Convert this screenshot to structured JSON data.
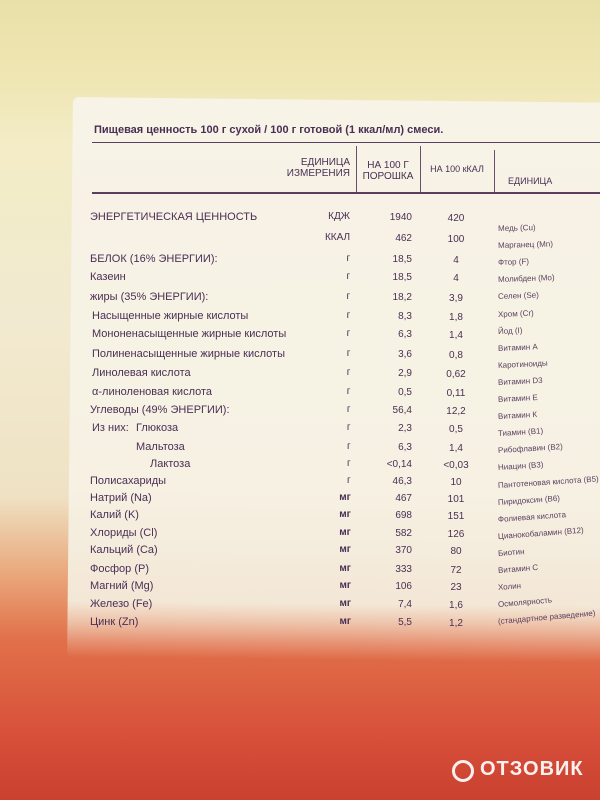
{
  "title": "Пищевая ценность 100 г сухой / 100 г готовой (1 ккал/мл) смеси.",
  "headers": {
    "unit": "ЕДИНИЦА ИЗМЕРЕНИЯ",
    "per_100g": "НА 100 Г ПОРОШКА",
    "per_100kcal": "НА 100 кКАЛ",
    "unit_right": "ЕДИНИЦА"
  },
  "rows": [
    {
      "name": "ЭНЕРГЕТИЧЕСКАЯ ЦЕННОСТЬ",
      "unit": "КДЖ",
      "per_100g": "1940",
      "per_100kcal": "420"
    },
    {
      "unit": "ККАЛ",
      "per_100g": "462",
      "per_100kcal": "100"
    },
    {
      "name": "БЕЛОК (16% ЭНЕРГИИ):",
      "unit": "г",
      "per_100g": "18,5",
      "per_100kcal": "4"
    },
    {
      "name": "Казеин",
      "unit": "г",
      "per_100g": "18,5",
      "per_100kcal": "4"
    },
    {
      "name": "жиры (35% ЭНЕРГИИ):",
      "unit": "г",
      "per_100g": "18,2",
      "per_100kcal": "3,9"
    },
    {
      "name": "Насыщенные жирные кислоты",
      "unit": "г",
      "per_100g": "8,3",
      "per_100kcal": "1,8"
    },
    {
      "name": "Мононенасыщенные жирные кислоты",
      "unit": "г",
      "per_100g": "6,3",
      "per_100kcal": "1,4"
    },
    {
      "name": "Полиненасыщенные жирные кислоты",
      "unit": "г",
      "per_100g": "3,6",
      "per_100kcal": "0,8"
    },
    {
      "name": "Линолевая кислота",
      "unit": "г",
      "per_100g": "2,9",
      "per_100kcal": "0,62"
    },
    {
      "name": "α-линоленовая кислота",
      "unit": "г",
      "per_100g": "0,5",
      "per_100kcal": "0,11"
    },
    {
      "name": "Углеводы (49% ЭНЕРГИИ):",
      "unit": "г",
      "per_100g": "56,4",
      "per_100kcal": "12,2"
    },
    {
      "prefix": "Из них:",
      "name": "Глюкоза",
      "unit": "г",
      "per_100g": "2,3",
      "per_100kcal": "0,5"
    },
    {
      "name": "Мальтоза",
      "unit": "г",
      "per_100g": "6,3",
      "per_100kcal": "1,4"
    },
    {
      "name": "Лактоза",
      "unit": "г",
      "per_100g": "<0,14",
      "per_100kcal": "<0,03"
    },
    {
      "name": "Полисахариды",
      "unit": "г",
      "per_100g": "46,3",
      "per_100kcal": "10"
    },
    {
      "name": "Натрий (Na)",
      "unit": "мг",
      "per_100g": "467",
      "per_100kcal": "101"
    },
    {
      "name": "Калий (K)",
      "unit": "мг",
      "per_100g": "698",
      "per_100kcal": "151"
    },
    {
      "name": "Хлориды (Cl)",
      "unit": "мг",
      "per_100g": "582",
      "per_100kcal": "126"
    },
    {
      "name": "Кальций (Ca)",
      "unit": "мг",
      "per_100g": "370",
      "per_100kcal": "80"
    },
    {
      "name": "Фосфор (P)",
      "unit": "мг",
      "per_100g": "333",
      "per_100kcal": "72"
    },
    {
      "name": "Магний (Mg)",
      "unit": "мг",
      "per_100g": "106",
      "per_100kcal": "23"
    },
    {
      "name": "Железо (Fe)",
      "unit": "мг",
      "per_100g": "7,4",
      "per_100kcal": "1,6"
    },
    {
      "name": "Цинк (Zn)",
      "unit": "мг",
      "per_100g": "5,5",
      "per_100kcal": "1,2"
    }
  ],
  "right_column": [
    "Медь (Cu)",
    "Марганец (Mn)",
    "Фтор (F)",
    "Молибден (Mo)",
    "Селен (Se)",
    "Хром (Cr)",
    "Йод (I)",
    "Витамин А",
    "Каротиноиды",
    "Витамин D3",
    "Витамин Е",
    "Витамин К",
    "Тиамин (B1)",
    "Рибофлавин (B2)",
    "Ниацин (B3)",
    "Пантотеновая кислота (B5)",
    "Пиридоксин (B6)",
    "Фолиевая кислота",
    "Цианокобаламин (B12)",
    "Биотин",
    "Витамин С",
    "Холин",
    "Осмолярность",
    "(стандартное разведение)"
  ],
  "watermark": "ОТЗОВИК"
}
